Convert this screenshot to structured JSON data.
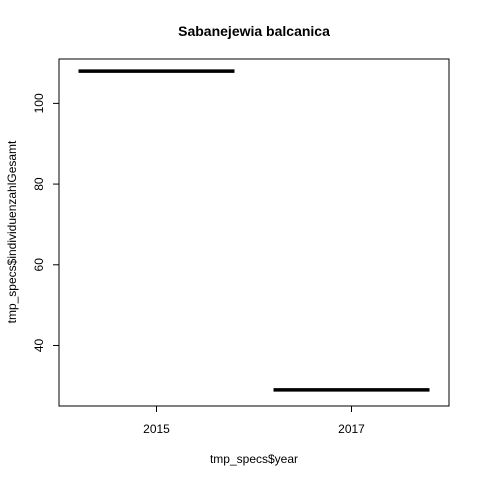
{
  "chart_data": {
    "type": "boxplot",
    "title": "Sabanejewia balcanica",
    "xlabel": "tmp_specs$year",
    "ylabel": "tmp_specs$individuenzahlGesamt",
    "categories": [
      "2015",
      "2017"
    ],
    "values": [
      108,
      29
    ],
    "yticks": [
      40,
      60,
      80,
      100
    ],
    "ylim": [
      25,
      111
    ],
    "grid": false,
    "legend": "none",
    "colors": {
      "line": "#000000",
      "axis": "#000000",
      "background": "#ffffff"
    }
  }
}
